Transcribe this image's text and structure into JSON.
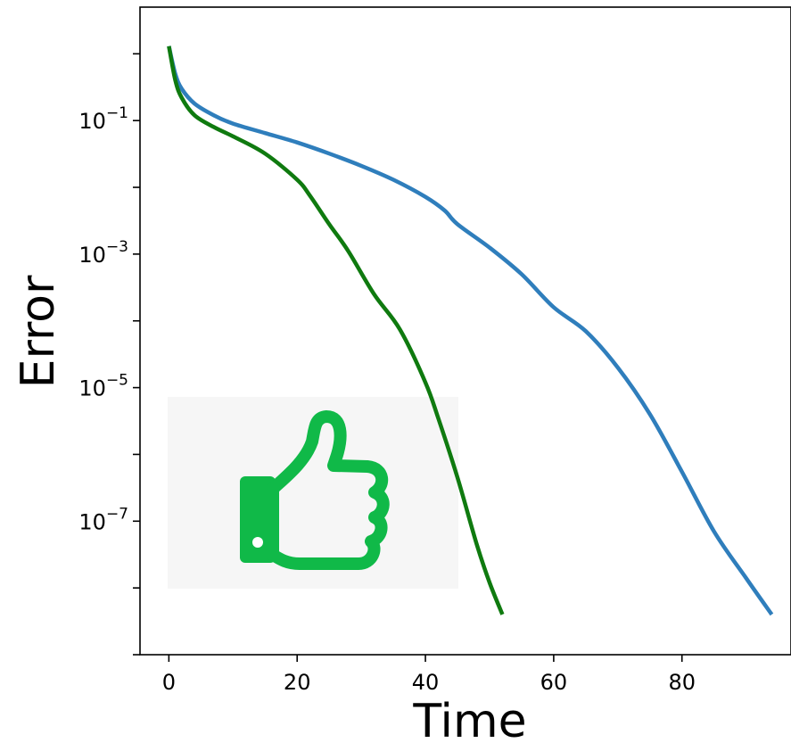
{
  "chart_data": {
    "type": "line",
    "xlabel": "Time",
    "ylabel": "Error",
    "xlim": [
      -4.5,
      97
    ],
    "ylim": [
      1e-09,
      5
    ],
    "yscale": "log",
    "grid": false,
    "x_ticks": [
      {
        "value": 0,
        "label": "0"
      },
      {
        "value": 20,
        "label": "20"
      },
      {
        "value": 40,
        "label": "40"
      },
      {
        "value": 60,
        "label": "60"
      },
      {
        "value": 80,
        "label": "80"
      }
    ],
    "y_ticks": [
      {
        "value": 0.1,
        "base": "10",
        "exp": "−1"
      },
      {
        "value": 0.001,
        "base": "10",
        "exp": "−3"
      },
      {
        "value": 1e-05,
        "base": "10",
        "exp": "−5"
      },
      {
        "value": 1e-07,
        "base": "10",
        "exp": "−7"
      }
    ],
    "series": [
      {
        "color": "#2f7ebc",
        "x": [
          0,
          1,
          2,
          4,
          7,
          10,
          15,
          20,
          25,
          30,
          35,
          40,
          43,
          45,
          50,
          55,
          60,
          65,
          70,
          75,
          80,
          85,
          90,
          94
        ],
        "y": [
          1.3,
          0.5,
          0.3,
          0.18,
          0.12,
          0.09,
          0.065,
          0.047,
          0.032,
          0.021,
          0.013,
          0.0072,
          0.0045,
          0.0028,
          0.00125,
          0.0005,
          0.00016,
          7e-05,
          2e-05,
          4e-06,
          5.5e-07,
          7e-08,
          1.4e-08,
          4e-09
        ]
      },
      {
        "color": "#0f7a0f",
        "x": [
          0,
          1,
          2,
          4,
          7,
          10,
          15,
          20,
          22,
          25,
          28,
          32,
          36,
          40,
          42,
          45,
          48,
          50,
          52
        ],
        "y": [
          1.3,
          0.4,
          0.22,
          0.12,
          0.08,
          0.058,
          0.032,
          0.013,
          0.0075,
          0.0028,
          0.0011,
          0.00025,
          7.5e-05,
          1.2e-05,
          3.5e-06,
          4.5e-07,
          4.5e-08,
          1.2e-08,
          4e-09
        ]
      }
    ]
  },
  "overlay": {
    "icon": "thumbs-up-icon",
    "color": "#10b948",
    "background": "#f6f6f6"
  }
}
